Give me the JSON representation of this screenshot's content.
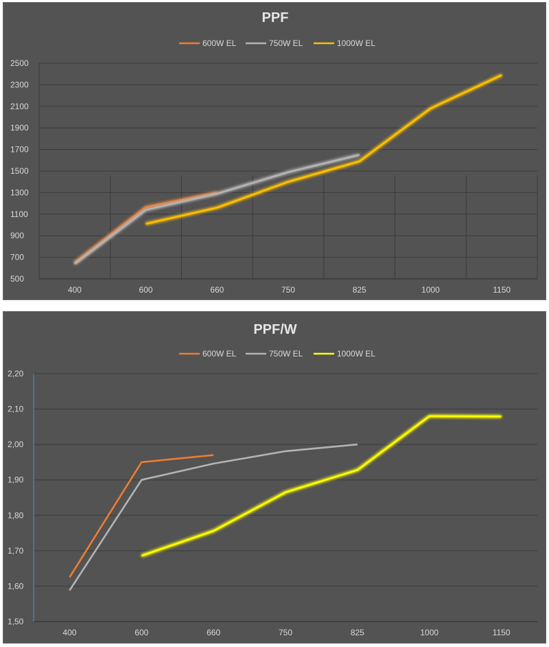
{
  "colors": {
    "background": "#535353",
    "grid": "#3a3a3a",
    "text": "#d9d9d9",
    "series_600": "#ed7d31",
    "series_750": "#b4b4b4",
    "series_1000_ppf": "#ffc000",
    "series_1000_ppfw": "#ffff00"
  },
  "chart_data": [
    {
      "type": "line",
      "title": "PPF",
      "categories": [
        "400",
        "600",
        "660",
        "750",
        "825",
        "1000",
        "1150"
      ],
      "ylim": [
        500,
        2500
      ],
      "yticks": [
        "500",
        "700",
        "900",
        "1100",
        "1300",
        "1500",
        "1700",
        "1900",
        "2100",
        "2300",
        "2500"
      ],
      "ytick_values": [
        500,
        700,
        900,
        1100,
        1300,
        1500,
        1700,
        1900,
        2100,
        2300,
        2500
      ],
      "legend_position": "top",
      "grid": true,
      "series": [
        {
          "name": "600W EL",
          "values": [
            650,
            1165,
            1300,
            null,
            null,
            null,
            null
          ]
        },
        {
          "name": "750W EL",
          "values": [
            640,
            1140,
            1290,
            1490,
            1650,
            null,
            null
          ]
        },
        {
          "name": "1000W EL",
          "values": [
            null,
            1010,
            1160,
            1400,
            1590,
            2080,
            2390
          ]
        }
      ]
    },
    {
      "type": "line",
      "title": "PPF/W",
      "categories": [
        "400",
        "600",
        "660",
        "750",
        "825",
        "1000",
        "1150"
      ],
      "ylim": [
        1.5,
        2.2
      ],
      "yticks": [
        "1,50",
        "1,60",
        "1,70",
        "1,80",
        "1,90",
        "2,00",
        "2,10",
        "2,20"
      ],
      "ytick_values": [
        1.5,
        1.6,
        1.7,
        1.8,
        1.9,
        2.0,
        2.1,
        2.2
      ],
      "legend_position": "top",
      "grid": true,
      "series": [
        {
          "name": "600W EL",
          "values": [
            1.625,
            1.95,
            1.97,
            null,
            null,
            null,
            null
          ]
        },
        {
          "name": "750W EL",
          "values": [
            1.588,
            1.9,
            1.946,
            1.981,
            2.0,
            null,
            null
          ]
        },
        {
          "name": "1000W EL",
          "values": [
            null,
            1.686,
            1.756,
            1.865,
            1.928,
            2.08,
            2.079
          ]
        }
      ]
    }
  ]
}
